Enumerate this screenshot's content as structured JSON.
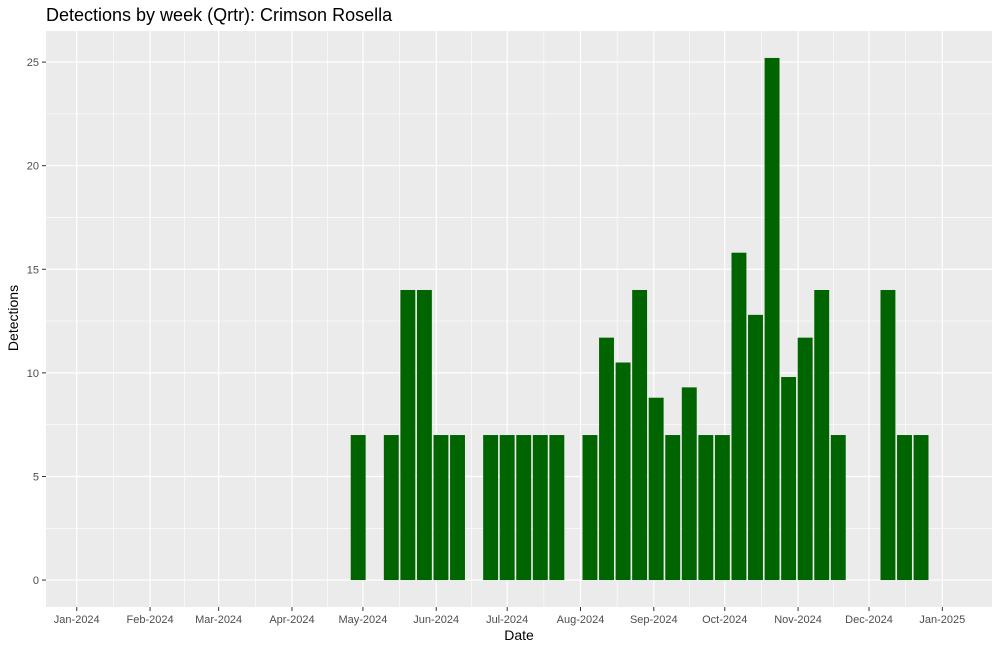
{
  "chart_data": {
    "type": "bar",
    "title": "Detections by week (Qrtr): Crimson Rosella",
    "xlabel": "Date",
    "ylabel": "Detections",
    "bar_color": "#006400",
    "panel_background": "#ebebeb",
    "grid": true,
    "legend": "none",
    "x_range": [
      "2023-12-19",
      "2025-01-22"
    ],
    "ylim": [
      -1.3,
      26.5
    ],
    "x_ticks": [
      {
        "date": "2024-01-01",
        "label": "Jan-2024"
      },
      {
        "date": "2024-02-01",
        "label": "Feb-2024"
      },
      {
        "date": "2024-03-01",
        "label": "Mar-2024"
      },
      {
        "date": "2024-04-01",
        "label": "Apr-2024"
      },
      {
        "date": "2024-05-01",
        "label": "May-2024"
      },
      {
        "date": "2024-06-01",
        "label": "Jun-2024"
      },
      {
        "date": "2024-07-01",
        "label": "Jul-2024"
      },
      {
        "date": "2024-08-01",
        "label": "Aug-2024"
      },
      {
        "date": "2024-09-01",
        "label": "Sep-2024"
      },
      {
        "date": "2024-10-01",
        "label": "Oct-2024"
      },
      {
        "date": "2024-11-01",
        "label": "Nov-2024"
      },
      {
        "date": "2024-12-01",
        "label": "Dec-2024"
      },
      {
        "date": "2025-01-01",
        "label": "Jan-2025"
      }
    ],
    "y_ticks": [
      0,
      5,
      10,
      15,
      20,
      25
    ],
    "bars": [
      {
        "week": "2024-04-29",
        "value": 7,
        "base": 0
      },
      {
        "week": "2024-05-13",
        "value": 7,
        "base": 0
      },
      {
        "week": "2024-05-20",
        "value": 14,
        "base": 0
      },
      {
        "week": "2024-05-27",
        "value": 14,
        "base": 0
      },
      {
        "week": "2024-06-03",
        "value": 7,
        "base": 0
      },
      {
        "week": "2024-06-10",
        "value": 7,
        "base": 0
      },
      {
        "week": "2024-06-24",
        "value": 7,
        "base": 0
      },
      {
        "week": "2024-07-01",
        "value": 7,
        "base": 0
      },
      {
        "week": "2024-07-08",
        "value": 7,
        "base": 0
      },
      {
        "week": "2024-07-15",
        "value": 7,
        "base": 0
      },
      {
        "week": "2024-07-22",
        "value": 7,
        "base": 0
      },
      {
        "week": "2024-08-05",
        "value": 7,
        "base": 0
      },
      {
        "week": "2024-08-12",
        "value": 11.7,
        "base": 0
      },
      {
        "week": "2024-08-19",
        "value": 10.5,
        "base": 0
      },
      {
        "week": "2024-08-26",
        "value": 14,
        "base": 0
      },
      {
        "week": "2024-09-02",
        "value": 8.8,
        "base": 0
      },
      {
        "week": "2024-09-09",
        "value": 7,
        "base": 0
      },
      {
        "week": "2024-09-16",
        "value": 9.3,
        "base": 0
      },
      {
        "week": "2024-09-23",
        "value": 7,
        "base": 0
      },
      {
        "week": "2024-09-30",
        "value": 7,
        "base": 0
      },
      {
        "week": "2024-10-07",
        "value": 15.8,
        "base": 0
      },
      {
        "week": "2024-10-14",
        "value": 12.8,
        "base": 0
      },
      {
        "week": "2024-10-21",
        "value": 25.2,
        "base": 0
      },
      {
        "week": "2024-10-28",
        "value": 9.8,
        "base": 0
      },
      {
        "week": "2024-11-04",
        "value": 11.7,
        "base": 0
      },
      {
        "week": "2024-11-11",
        "value": 14,
        "base": 0
      },
      {
        "week": "2024-11-18",
        "value": 7,
        "base": 0
      },
      {
        "week": "2024-12-09",
        "value": 14,
        "base": 0
      },
      {
        "week": "2024-12-16",
        "value": 7,
        "base": 0
      },
      {
        "week": "2024-12-23",
        "value": 7,
        "base": 0
      }
    ]
  }
}
